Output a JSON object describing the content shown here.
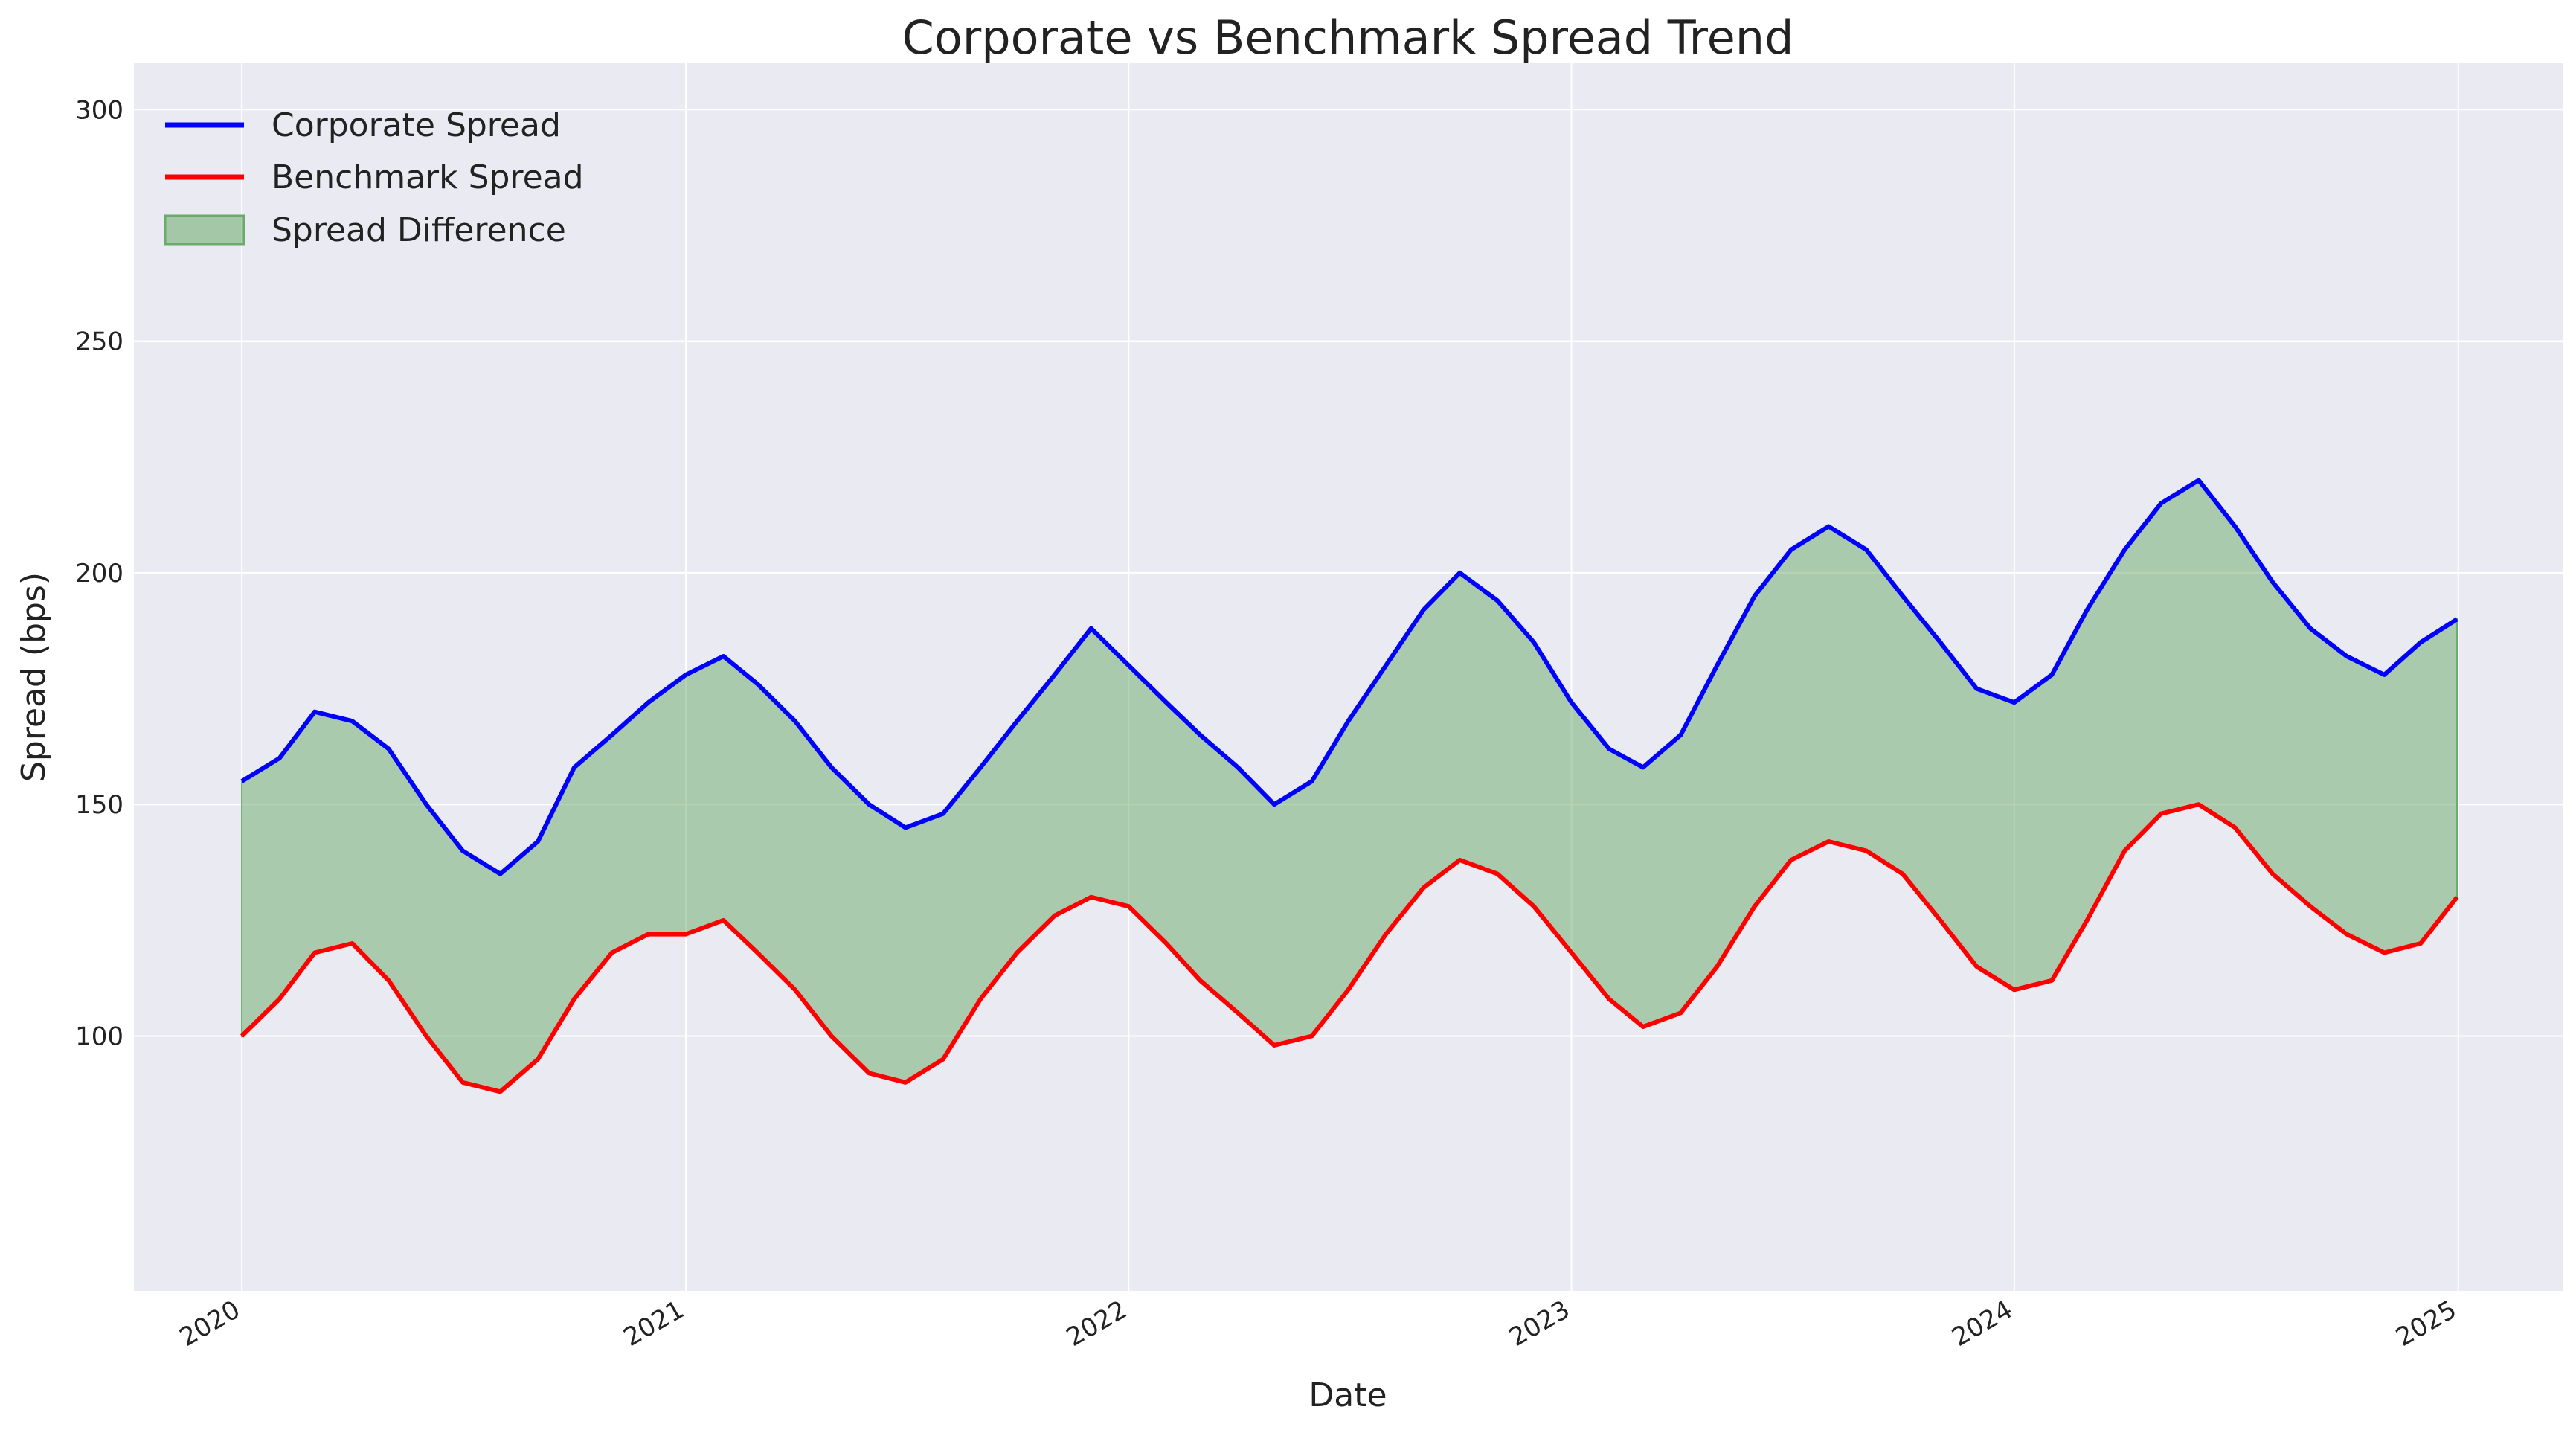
{
  "chart_data": {
    "type": "line",
    "title": "Corporate vs Benchmark Spread Trend",
    "xlabel": "Date",
    "ylabel": "Spread (bps)",
    "xlim": [
      "2019-10-04",
      "2025-03-28"
    ],
    "ylim": [
      45,
      310
    ],
    "x_ticks": [
      "2020",
      "2021",
      "2022",
      "2023",
      "2024",
      "2025"
    ],
    "y_ticks": [
      100,
      150,
      200,
      250,
      300
    ],
    "grid": true,
    "legend_position": "top-left",
    "series": [
      {
        "name": "Corporate Spread",
        "color": "#0000ff",
        "x": [
          "2020-01-01",
          "2020-02-01",
          "2020-03-01",
          "2020-04-01",
          "2020-05-01",
          "2020-06-01",
          "2020-07-01",
          "2020-08-01",
          "2020-09-01",
          "2020-10-01",
          "2020-11-01",
          "2020-12-01",
          "2021-01-01",
          "2021-02-01",
          "2021-03-01",
          "2021-04-01",
          "2021-05-01",
          "2021-06-01",
          "2021-07-01",
          "2021-08-01",
          "2021-09-01",
          "2021-10-01",
          "2021-11-01",
          "2021-12-01",
          "2022-01-01",
          "2022-02-01",
          "2022-03-01",
          "2022-04-01",
          "2022-05-01",
          "2022-06-01",
          "2022-07-01",
          "2022-08-01",
          "2022-09-01",
          "2022-10-01",
          "2022-11-01",
          "2022-12-01",
          "2023-01-01",
          "2023-02-01",
          "2023-03-01",
          "2023-04-01",
          "2023-05-01",
          "2023-06-01",
          "2023-07-01",
          "2023-08-01",
          "2023-09-01",
          "2023-10-01",
          "2023-11-01",
          "2023-12-01",
          "2024-01-01",
          "2024-02-01",
          "2024-03-01",
          "2024-04-01",
          "2024-05-01",
          "2024-06-01",
          "2024-07-01",
          "2024-08-01",
          "2024-09-01",
          "2024-10-01",
          "2024-11-01",
          "2024-12-01",
          "2024-12-31"
        ],
        "values": [
          155,
          160,
          170,
          168,
          162,
          150,
          140,
          135,
          142,
          158,
          165,
          172,
          178,
          182,
          176,
          168,
          158,
          150,
          145,
          148,
          158,
          168,
          178,
          188,
          180,
          172,
          165,
          158,
          150,
          155,
          168,
          180,
          192,
          200,
          194,
          185,
          172,
          162,
          158,
          165,
          180,
          195,
          205,
          210,
          205,
          195,
          185,
          175,
          172,
          178,
          192,
          205,
          215,
          220,
          210,
          198,
          188,
          182,
          178,
          185,
          190
        ]
      },
      {
        "name": "Benchmark Spread",
        "color": "#ff0000",
        "x": [
          "2020-01-01",
          "2020-02-01",
          "2020-03-01",
          "2020-04-01",
          "2020-05-01",
          "2020-06-01",
          "2020-07-01",
          "2020-08-01",
          "2020-09-01",
          "2020-10-01",
          "2020-11-01",
          "2020-12-01",
          "2021-01-01",
          "2021-02-01",
          "2021-03-01",
          "2021-04-01",
          "2021-05-01",
          "2021-06-01",
          "2021-07-01",
          "2021-08-01",
          "2021-09-01",
          "2021-10-01",
          "2021-11-01",
          "2021-12-01",
          "2022-01-01",
          "2022-02-01",
          "2022-03-01",
          "2022-04-01",
          "2022-05-01",
          "2022-06-01",
          "2022-07-01",
          "2022-08-01",
          "2022-09-01",
          "2022-10-01",
          "2022-11-01",
          "2022-12-01",
          "2023-01-01",
          "2023-02-01",
          "2023-03-01",
          "2023-04-01",
          "2023-05-01",
          "2023-06-01",
          "2023-07-01",
          "2023-08-01",
          "2023-09-01",
          "2023-10-01",
          "2023-11-01",
          "2023-12-01",
          "2024-01-01",
          "2024-02-01",
          "2024-03-01",
          "2024-04-01",
          "2024-05-01",
          "2024-06-01",
          "2024-07-01",
          "2024-08-01",
          "2024-09-01",
          "2024-10-01",
          "2024-11-01",
          "2024-12-01",
          "2024-12-31"
        ],
        "values": [
          100,
          108,
          118,
          120,
          112,
          100,
          90,
          88,
          95,
          108,
          118,
          122,
          122,
          125,
          118,
          110,
          100,
          92,
          90,
          95,
          108,
          118,
          126,
          130,
          128,
          120,
          112,
          105,
          98,
          100,
          110,
          122,
          132,
          138,
          135,
          128,
          118,
          108,
          102,
          105,
          115,
          128,
          138,
          142,
          140,
          135,
          125,
          115,
          110,
          112,
          125,
          140,
          148,
          150,
          145,
          135,
          128,
          122,
          118,
          120,
          130
        ]
      },
      {
        "name": "Spread Difference",
        "color": "#6aaa6a",
        "fill": true
      }
    ]
  }
}
